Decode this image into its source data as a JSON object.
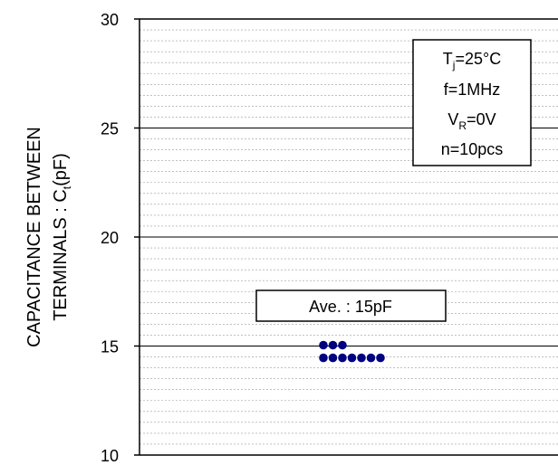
{
  "chart_data": {
    "type": "scatter",
    "ylabel_line1": "CAPACITANCE BETWEEN",
    "ylabel_line2_main": "TERMINALS : C",
    "ylabel_line2_sub": "t",
    "ylabel_line2_tail": "(pF)",
    "ylim": [
      10,
      30
    ],
    "yticks": [
      10,
      15,
      20,
      25,
      30
    ],
    "ytick_labels": [
      "10",
      "15",
      "20",
      "25",
      "30"
    ],
    "major_grid": [
      15,
      20,
      25
    ],
    "minor_grid_step": 0.5,
    "points": [
      {
        "x": 0,
        "y": 15.0
      },
      {
        "x": 1,
        "y": 15.0
      },
      {
        "x": 2,
        "y": 15.0
      },
      {
        "x": 0,
        "y": 14.5
      },
      {
        "x": 1,
        "y": 14.5
      },
      {
        "x": 2,
        "y": 14.5
      },
      {
        "x": 3,
        "y": 14.5
      },
      {
        "x": 4,
        "y": 14.5
      },
      {
        "x": 5,
        "y": 14.5
      },
      {
        "x": 6,
        "y": 14.5
      }
    ],
    "point_color": "#000080",
    "average_label": "Ave. : 15pF",
    "conditions": {
      "tj_main": "T",
      "tj_sub": "j",
      "tj_tail": "=25°C",
      "freq": "f=1MHz",
      "vr_main": "V",
      "vr_sub": "R",
      "vr_tail": "=0V",
      "n": "n=10pcs"
    }
  }
}
